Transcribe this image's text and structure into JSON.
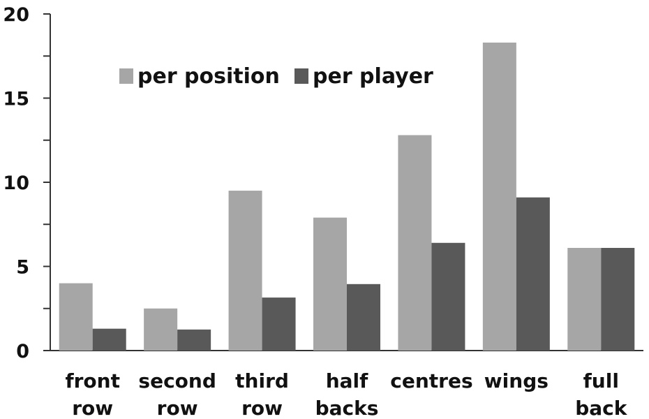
{
  "chart_data": {
    "type": "bar",
    "categories": [
      [
        "front",
        "row"
      ],
      [
        "second",
        "row"
      ],
      [
        "third",
        "row"
      ],
      [
        "half",
        "backs"
      ],
      [
        "centres"
      ],
      [
        "wings"
      ],
      [
        "full",
        "back"
      ]
    ],
    "series": [
      {
        "name": "per position",
        "color": "#a6a6a6",
        "values": [
          4.0,
          2.5,
          9.5,
          7.9,
          12.8,
          18.3,
          6.1
        ]
      },
      {
        "name": "per player",
        "color": "#595959",
        "values": [
          1.3,
          1.25,
          3.15,
          3.95,
          6.4,
          9.1,
          6.1
        ]
      }
    ],
    "ylim": [
      0,
      20
    ],
    "yticks": [
      0,
      5,
      10,
      15,
      20
    ],
    "title": "",
    "xlabel": "",
    "ylabel": "",
    "legend_position": "top-left",
    "grid": false
  }
}
